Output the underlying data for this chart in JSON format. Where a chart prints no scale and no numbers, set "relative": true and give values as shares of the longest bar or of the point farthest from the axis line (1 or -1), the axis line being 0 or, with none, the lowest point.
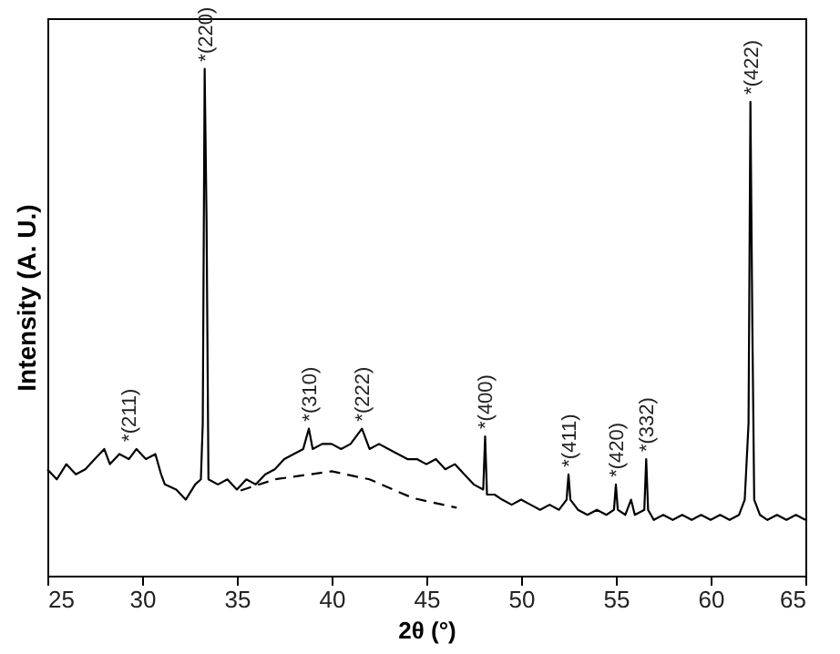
{
  "chart_data": {
    "type": "line",
    "relative": true,
    "xlabel": "2θ (°)",
    "ylabel": "Intensity (A. U.)",
    "xlim": [
      25,
      65
    ],
    "xticks": [
      25,
      30,
      35,
      40,
      45,
      50,
      55,
      60,
      65
    ],
    "grid": false,
    "marker": "none",
    "series": [
      {
        "color": "#000000",
        "line_style": "solid",
        "x": [
          25,
          25.5,
          26,
          26.5,
          27,
          27.5,
          28,
          28.3,
          28.8,
          29.3,
          29.7,
          30.2,
          30.7,
          31.0,
          31.2,
          31.8,
          32.3,
          32.8,
          33.1,
          33.2,
          33.3,
          33.4,
          33.5,
          34,
          34.5,
          35,
          35.5,
          36,
          36.5,
          37,
          37.5,
          38,
          38.5,
          38.8,
          39,
          39.5,
          40,
          40.5,
          41,
          41.6,
          42,
          42.5,
          43,
          43.5,
          44,
          44.5,
          45,
          45.5,
          46,
          46.5,
          47,
          47.5,
          48,
          48.1,
          48.2,
          48.6,
          49,
          49.5,
          50,
          50.5,
          51,
          51.5,
          52,
          52.4,
          52.5,
          52.6,
          53,
          53.5,
          54,
          54.5,
          54.9,
          55.0,
          55.1,
          55.5,
          55.8,
          56,
          56.5,
          56.6,
          56.7,
          57,
          57.5,
          58,
          58.5,
          59,
          59.5,
          60,
          60.5,
          61,
          61.5,
          61.8,
          62.0,
          62.1,
          62.2,
          62.3,
          62.6,
          63,
          63.5,
          64,
          64.5,
          65
        ],
        "values": [
          0.21,
          0.19,
          0.22,
          0.2,
          0.21,
          0.23,
          0.25,
          0.22,
          0.24,
          0.23,
          0.25,
          0.23,
          0.24,
          0.2,
          0.18,
          0.17,
          0.15,
          0.18,
          0.19,
          0.3,
          1.0,
          0.7,
          0.19,
          0.18,
          0.19,
          0.17,
          0.19,
          0.18,
          0.2,
          0.21,
          0.23,
          0.24,
          0.25,
          0.29,
          0.25,
          0.26,
          0.26,
          0.25,
          0.26,
          0.29,
          0.25,
          0.26,
          0.25,
          0.24,
          0.23,
          0.23,
          0.22,
          0.23,
          0.21,
          0.22,
          0.2,
          0.18,
          0.17,
          0.275,
          0.16,
          0.16,
          0.15,
          0.14,
          0.15,
          0.14,
          0.13,
          0.14,
          0.13,
          0.15,
          0.2,
          0.15,
          0.13,
          0.12,
          0.13,
          0.12,
          0.13,
          0.18,
          0.13,
          0.12,
          0.15,
          0.12,
          0.13,
          0.23,
          0.13,
          0.11,
          0.12,
          0.11,
          0.12,
          0.11,
          0.12,
          0.11,
          0.12,
          0.11,
          0.12,
          0.15,
          0.3,
          0.935,
          0.5,
          0.15,
          0.12,
          0.11,
          0.12,
          0.11,
          0.12,
          0.11
        ]
      },
      {
        "color": "#000000",
        "line_style": "dashed",
        "x": [
          35.2,
          37,
          40,
          42,
          44.3,
          46.6
        ],
        "values": [
          0.168,
          0.19,
          0.206,
          0.19,
          0.153,
          0.134
        ]
      }
    ],
    "annotations": [
      {
        "text": "*(211)",
        "x": 29.3,
        "y": 0.25
      },
      {
        "text": "*(220)",
        "x": 33.3,
        "y": 1.0
      },
      {
        "text": "*(310)",
        "x": 38.8,
        "y": 0.29
      },
      {
        "text": "*(222)",
        "x": 41.6,
        "y": 0.29
      },
      {
        "text": "*(400)",
        "x": 48.1,
        "y": 0.275
      },
      {
        "text": "*(411)",
        "x": 52.5,
        "y": 0.2
      },
      {
        "text": "*(420)",
        "x": 55.0,
        "y": 0.18
      },
      {
        "text": "*(332)",
        "x": 56.6,
        "y": 0.23
      },
      {
        "text": "*(422)",
        "x": 62.1,
        "y": 0.935
      }
    ]
  }
}
